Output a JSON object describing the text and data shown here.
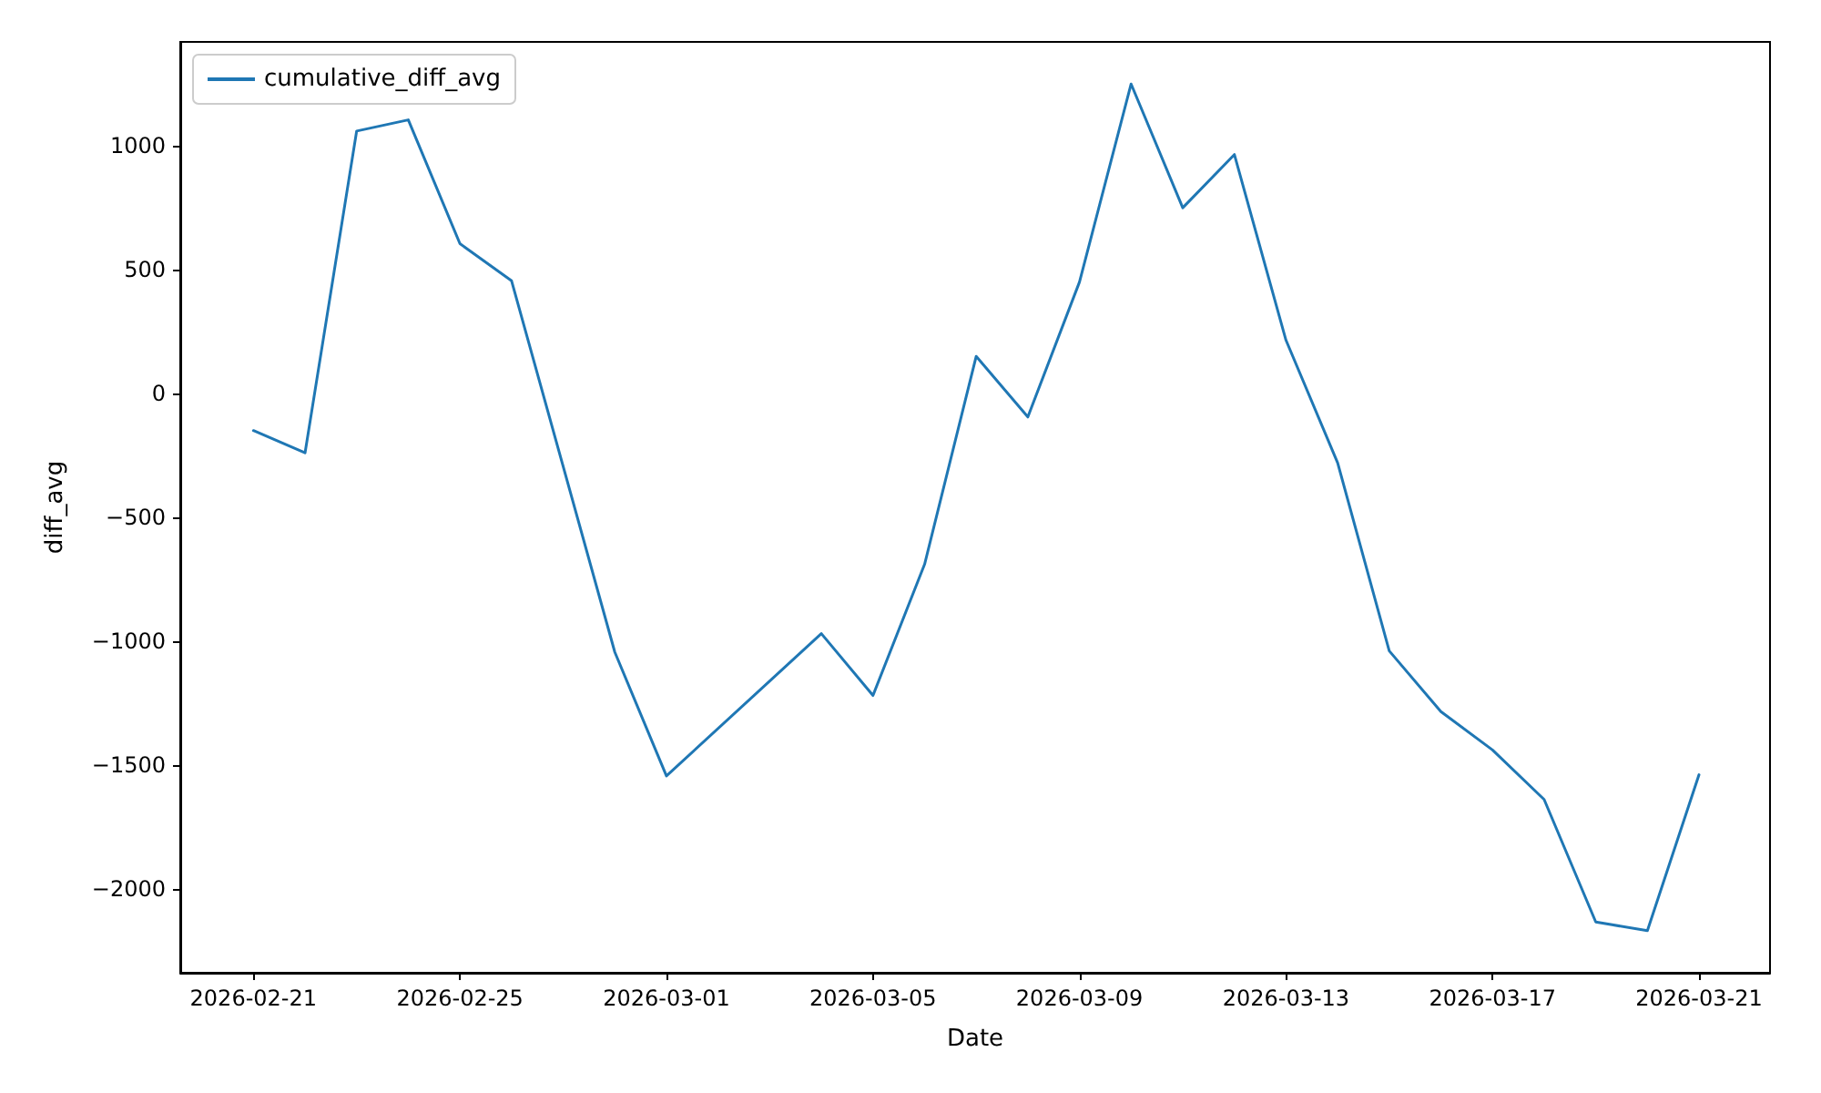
{
  "chart_data": {
    "type": "line",
    "xlabel": "Date",
    "ylabel": "diff_avg",
    "x": [
      "2026-02-21",
      "2026-02-22",
      "2026-02-23",
      "2026-02-24",
      "2026-02-25",
      "2026-02-26",
      "2026-02-28",
      "2026-03-01",
      "2026-03-04",
      "2026-03-05",
      "2026-03-06",
      "2026-03-07",
      "2026-03-08",
      "2026-03-09",
      "2026-03-10",
      "2026-03-11",
      "2026-03-12",
      "2026-03-13",
      "2026-03-14",
      "2026-03-15",
      "2026-03-16",
      "2026-03-17",
      "2026-03-18",
      "2026-03-19",
      "2026-03-20",
      "2026-03-21"
    ],
    "series": [
      {
        "name": "cumulative_diff_avg",
        "color": "#1f77b4",
        "values": [
          -150,
          -240,
          1060,
          1105,
          605,
          455,
          -1045,
          -1545,
          -970,
          -1220,
          -690,
          150,
          -95,
          450,
          1250,
          750,
          965,
          215,
          -280,
          -1040,
          -1285,
          -1440,
          -1640,
          -2135,
          -2170,
          -1540
        ]
      }
    ],
    "xlim": [
      "2026-02-19T14:00",
      "2026-03-22T09:00"
    ],
    "xticks": [
      "2026-02-21",
      "2026-02-25",
      "2026-03-01",
      "2026-03-05",
      "2026-03-09",
      "2026-03-13",
      "2026-03-17",
      "2026-03-21"
    ],
    "ylim": [
      -2340,
      1420
    ],
    "yticks": [
      {
        "value": -2000,
        "label": "−2000"
      },
      {
        "value": -1500,
        "label": "−1500"
      },
      {
        "value": -1000,
        "label": "−1000"
      },
      {
        "value": -500,
        "label": "−500"
      },
      {
        "value": 0,
        "label": "0"
      },
      {
        "value": 500,
        "label": "500"
      },
      {
        "value": 1000,
        "label": "1000"
      }
    ],
    "grid": false,
    "legend": "top left",
    "marker": "none",
    "line_style": "solid"
  }
}
